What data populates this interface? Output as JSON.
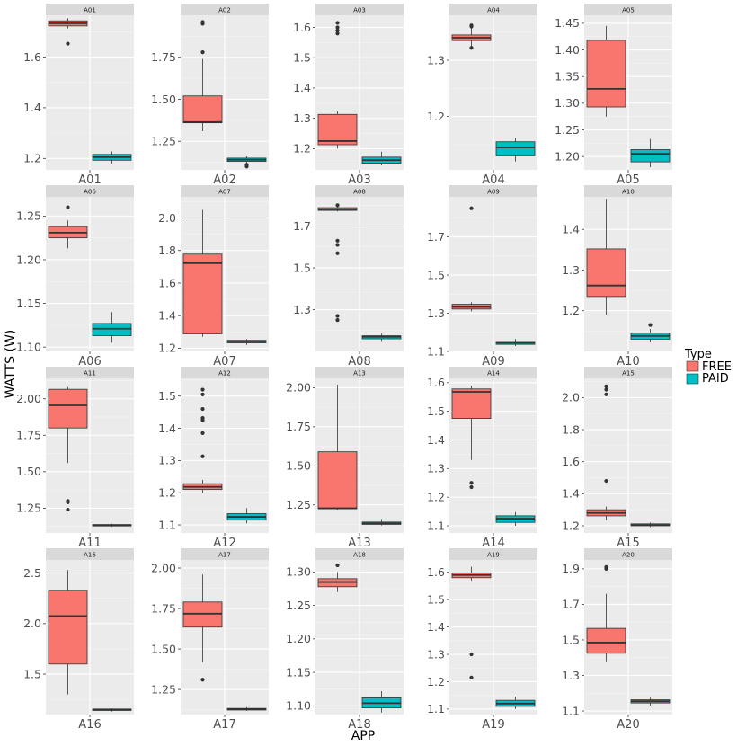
{
  "chart_data": {
    "type": "boxplot",
    "facet_type": "facet_wrap",
    "xlabel": "APP",
    "ylabel": "WATTS (W)",
    "legend": {
      "title": "Type",
      "position": "right",
      "entries": [
        {
          "name": "FREE",
          "color": "#F8766D"
        },
        {
          "name": "PAID",
          "color": "#00BFC4"
        }
      ]
    },
    "panels": [
      {
        "id": "A01",
        "category": "A01",
        "yticks": [
          1.2,
          1.4,
          1.6
        ],
        "ylim": [
          1.155,
          1.765
        ],
        "boxes": {
          "FREE": {
            "q1": 1.723,
            "median": 1.733,
            "q3": 1.743,
            "lower": 1.713,
            "upper": 1.753,
            "outliers": [
              1.653
            ]
          },
          "PAID": {
            "q1": 1.193,
            "median": 1.205,
            "q3": 1.216,
            "lower": 1.18,
            "upper": 1.228,
            "outliers": []
          }
        }
      },
      {
        "id": "A02",
        "category": "A02",
        "yticks": [
          1.25,
          1.5,
          1.75
        ],
        "ylim": [
          1.08,
          2.0
        ],
        "boxes": {
          "FREE": {
            "q1": 1.36,
            "median": 1.365,
            "q3": 1.52,
            "lower": 1.31,
            "upper": 1.74,
            "outliers": [
              1.78,
              1.95,
              1.96
            ]
          },
          "PAID": {
            "q1": 1.13,
            "median": 1.14,
            "q3": 1.15,
            "lower": 1.12,
            "upper": 1.16,
            "outliers": [
              1.1,
              1.11
            ]
          }
        }
      },
      {
        "id": "A03",
        "category": "A03",
        "yticks": [
          1.2,
          1.3,
          1.4,
          1.5,
          1.6
        ],
        "ylim": [
          1.13,
          1.64
        ],
        "boxes": {
          "FREE": {
            "q1": 1.213,
            "median": 1.225,
            "q3": 1.313,
            "lower": 1.2,
            "upper": 1.323,
            "outliers": [
              1.58,
              1.59,
              1.6,
              1.615
            ]
          },
          "PAID": {
            "q1": 1.152,
            "median": 1.162,
            "q3": 1.172,
            "lower": 1.145,
            "upper": 1.19,
            "outliers": []
          }
        }
      },
      {
        "id": "A04",
        "category": "A04",
        "yticks": [
          1.2,
          1.3
        ],
        "ylim": [
          1.105,
          1.38
        ],
        "boxes": {
          "FREE": {
            "q1": 1.335,
            "median": 1.34,
            "q3": 1.345,
            "lower": 1.322,
            "upper": 1.36,
            "outliers": [
              1.322,
              1.36,
              1.362
            ]
          },
          "PAID": {
            "q1": 1.13,
            "median": 1.145,
            "q3": 1.155,
            "lower": 1.12,
            "upper": 1.162,
            "outliers": []
          }
        }
      },
      {
        "id": "A05",
        "category": "A05",
        "yticks": [
          1.2,
          1.25,
          1.3,
          1.35,
          1.4,
          1.45
        ],
        "ylim": [
          1.175,
          1.465
        ],
        "boxes": {
          "FREE": {
            "q1": 1.293,
            "median": 1.327,
            "q3": 1.418,
            "lower": 1.275,
            "upper": 1.445,
            "outliers": []
          },
          "PAID": {
            "q1": 1.19,
            "median": 1.205,
            "q3": 1.213,
            "lower": 1.18,
            "upper": 1.233,
            "outliers": []
          }
        }
      },
      {
        "id": "A06",
        "category": "A06",
        "yticks": [
          1.1,
          1.15,
          1.2,
          1.25
        ],
        "ylim": [
          1.095,
          1.272
        ],
        "boxes": {
          "FREE": {
            "q1": 1.225,
            "median": 1.231,
            "q3": 1.238,
            "lower": 1.213,
            "upper": 1.245,
            "outliers": [
              1.26
            ]
          },
          "PAID": {
            "q1": 1.113,
            "median": 1.121,
            "q3": 1.127,
            "lower": 1.105,
            "upper": 1.14,
            "outliers": []
          }
        }
      },
      {
        "id": "A07",
        "category": "A07",
        "yticks": [
          1.2,
          1.4,
          1.6,
          1.8,
          2.0
        ],
        "ylim": [
          1.18,
          2.13
        ],
        "boxes": {
          "FREE": {
            "q1": 1.288,
            "median": 1.722,
            "q3": 1.778,
            "lower": 1.27,
            "upper": 2.05,
            "outliers": []
          },
          "PAID": {
            "q1": 1.232,
            "median": 1.24,
            "q3": 1.248,
            "lower": 1.22,
            "upper": 1.255,
            "outliers": []
          }
        }
      },
      {
        "id": "A08",
        "category": "A08",
        "yticks": [
          1.3,
          1.5,
          1.7
        ],
        "ylim": [
          1.1,
          1.84
        ],
        "boxes": {
          "FREE": {
            "q1": 1.775,
            "median": 1.78,
            "q3": 1.788,
            "lower": 1.77,
            "upper": 1.795,
            "outliers": [
              1.8,
              1.63,
              1.61,
              1.57,
              1.27,
              1.25
            ]
          },
          "PAID": {
            "q1": 1.16,
            "median": 1.17,
            "q3": 1.175,
            "lower": 1.15,
            "upper": 1.185,
            "outliers": []
          }
        }
      },
      {
        "id": "A09",
        "category": "A09",
        "yticks": [
          1.1,
          1.3,
          1.5,
          1.7
        ],
        "ylim": [
          1.1,
          1.91
        ],
        "boxes": {
          "FREE": {
            "q1": 1.322,
            "median": 1.333,
            "q3": 1.347,
            "lower": 1.31,
            "upper": 1.358,
            "outliers": [
              1.85
            ]
          },
          "PAID": {
            "q1": 1.137,
            "median": 1.145,
            "q3": 1.152,
            "lower": 1.128,
            "upper": 1.165,
            "outliers": []
          }
        }
      },
      {
        "id": "A10",
        "category": "A10",
        "yticks": [
          1.2,
          1.3,
          1.4
        ],
        "ylim": [
          1.1,
          1.48
        ],
        "boxes": {
          "FREE": {
            "q1": 1.235,
            "median": 1.262,
            "q3": 1.352,
            "lower": 1.19,
            "upper": 1.475,
            "outliers": []
          },
          "PAID": {
            "q1": 1.13,
            "median": 1.138,
            "q3": 1.145,
            "lower": 1.122,
            "upper": 1.155,
            "outliers": [
              1.165
            ]
          }
        }
      },
      {
        "id": "A11",
        "category": "A11",
        "yticks": [
          1.25,
          1.5,
          1.75,
          2.0
        ],
        "ylim": [
          1.08,
          2.14
        ],
        "boxes": {
          "FREE": {
            "q1": 1.8,
            "median": 1.955,
            "q3": 2.065,
            "lower": 1.56,
            "upper": 2.08,
            "outliers": [
              1.3,
              1.29,
              1.24
            ]
          },
          "PAID": {
            "q1": 1.128,
            "median": 1.133,
            "q3": 1.138,
            "lower": 1.122,
            "upper": 1.143,
            "outliers": []
          }
        }
      },
      {
        "id": "A12",
        "category": "A12",
        "yticks": [
          1.1,
          1.2,
          1.3,
          1.4,
          1.5
        ],
        "ylim": [
          1.075,
          1.555
        ],
        "boxes": {
          "FREE": {
            "q1": 1.21,
            "median": 1.218,
            "q3": 1.228,
            "lower": 1.2,
            "upper": 1.24,
            "outliers": [
              1.52,
              1.505,
              1.46,
              1.432,
              1.425,
              1.385,
              1.313
            ]
          },
          "PAID": {
            "q1": 1.115,
            "median": 1.125,
            "q3": 1.135,
            "lower": 1.105,
            "upper": 1.152,
            "outliers": []
          }
        }
      },
      {
        "id": "A13",
        "category": "A13",
        "yticks": [
          1.25,
          1.5,
          1.75,
          2.0
        ],
        "ylim": [
          1.07,
          2.06
        ],
        "boxes": {
          "FREE": {
            "q1": 1.225,
            "median": 1.228,
            "q3": 1.59,
            "lower": 1.22,
            "upper": 2.02,
            "outliers": []
          },
          "PAID": {
            "q1": 1.125,
            "median": 1.132,
            "q3": 1.14,
            "lower": 1.118,
            "upper": 1.16,
            "outliers": []
          }
        }
      },
      {
        "id": "A14",
        "category": "A14",
        "yticks": [
          1.1,
          1.2,
          1.3,
          1.4,
          1.5,
          1.6
        ],
        "ylim": [
          1.075,
          1.615
        ],
        "boxes": {
          "FREE": {
            "q1": 1.475,
            "median": 1.568,
            "q3": 1.578,
            "lower": 1.33,
            "upper": 1.59,
            "outliers": [
              1.25,
              1.235
            ]
          },
          "PAID": {
            "q1": 1.112,
            "median": 1.125,
            "q3": 1.135,
            "lower": 1.1,
            "upper": 1.148,
            "outliers": []
          }
        }
      },
      {
        "id": "A15",
        "category": "A15",
        "yticks": [
          1.2,
          1.4,
          1.6,
          1.8,
          2.0
        ],
        "ylim": [
          1.155,
          2.12
        ],
        "boxes": {
          "FREE": {
            "q1": 1.262,
            "median": 1.28,
            "q3": 1.3,
            "lower": 1.235,
            "upper": 1.32,
            "outliers": [
              2.07,
              2.05,
              2.02,
              1.48
            ]
          },
          "PAID": {
            "q1": 1.2,
            "median": 1.205,
            "q3": 1.212,
            "lower": 1.192,
            "upper": 1.22,
            "outliers": []
          }
        }
      },
      {
        "id": "A16",
        "category": "A16",
        "yticks": [
          1.5,
          2.0,
          2.5
        ],
        "ylim": [
          1.1,
          2.63
        ],
        "boxes": {
          "FREE": {
            "q1": 1.6,
            "median": 2.075,
            "q3": 2.33,
            "lower": 1.3,
            "upper": 2.53,
            "outliers": []
          },
          "PAID": {
            "q1": 1.14,
            "median": 1.15,
            "q3": 1.155,
            "lower": 1.13,
            "upper": 1.16,
            "outliers": []
          }
        }
      },
      {
        "id": "A17",
        "category": "A17",
        "yticks": [
          1.25,
          1.5,
          1.75,
          2.0
        ],
        "ylim": [
          1.095,
          2.05
        ],
        "boxes": {
          "FREE": {
            "q1": 1.635,
            "median": 1.718,
            "q3": 1.79,
            "lower": 1.42,
            "upper": 1.96,
            "outliers": [
              1.31
            ]
          },
          "PAID": {
            "q1": 1.123,
            "median": 1.128,
            "q3": 1.133,
            "lower": 1.118,
            "upper": 1.14,
            "outliers": []
          }
        }
      },
      {
        "id": "A18",
        "category": "A18",
        "yticks": [
          1.1,
          1.15,
          1.2,
          1.25,
          1.3
        ],
        "ylim": [
          1.087,
          1.318
        ],
        "boxes": {
          "FREE": {
            "q1": 1.278,
            "median": 1.285,
            "q3": 1.29,
            "lower": 1.27,
            "upper": 1.3,
            "outliers": [
              1.31
            ]
          },
          "PAID": {
            "q1": 1.097,
            "median": 1.104,
            "q3": 1.112,
            "lower": 1.09,
            "upper": 1.122,
            "outliers": []
          }
        }
      },
      {
        "id": "A19",
        "category": "A19",
        "yticks": [
          1.1,
          1.2,
          1.3,
          1.4,
          1.5,
          1.6
        ],
        "ylim": [
          1.08,
          1.645
        ],
        "boxes": {
          "FREE": {
            "q1": 1.58,
            "median": 1.59,
            "q3": 1.598,
            "lower": 1.57,
            "upper": 1.62,
            "outliers": [
              1.3,
              1.215
            ]
          },
          "PAID": {
            "q1": 1.11,
            "median": 1.12,
            "q3": 1.132,
            "lower": 1.1,
            "upper": 1.145,
            "outliers": []
          }
        }
      },
      {
        "id": "A20",
        "category": "A20",
        "yticks": [
          1.1,
          1.3,
          1.5,
          1.7,
          1.9
        ],
        "ylim": [
          1.08,
          1.95
        ],
        "boxes": {
          "FREE": {
            "q1": 1.425,
            "median": 1.485,
            "q3": 1.565,
            "lower": 1.38,
            "upper": 1.76,
            "outliers": [
              1.9,
              1.91
            ]
          },
          "PAID": {
            "q1": 1.145,
            "median": 1.155,
            "q3": 1.163,
            "lower": 1.13,
            "upper": 1.175,
            "outliers": []
          }
        }
      }
    ]
  }
}
